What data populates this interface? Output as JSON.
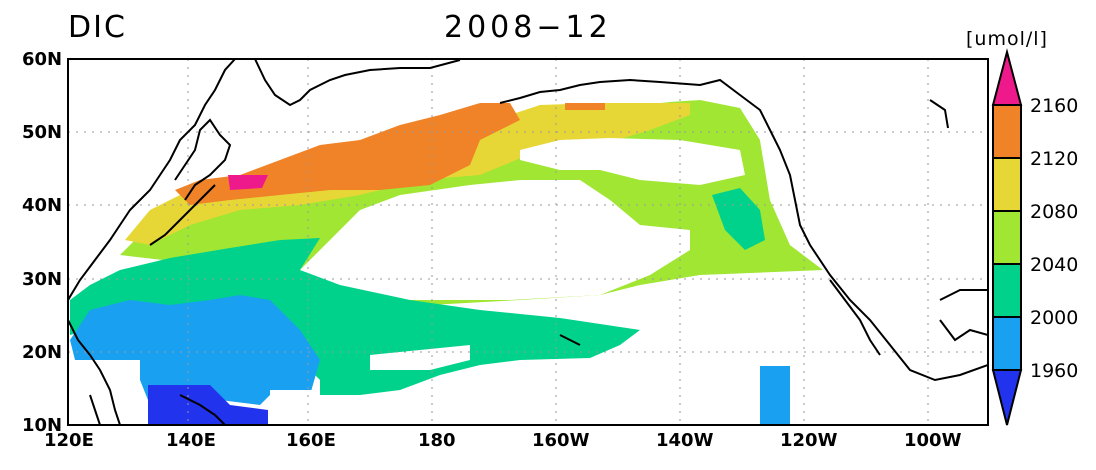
{
  "header": {
    "variable": "DIC",
    "date": "2008−12",
    "units": "[umol/l]"
  },
  "map": {
    "lon_range": [
      "120E",
      "90W"
    ],
    "lat_range": [
      "10N",
      "60N"
    ],
    "x_ticks": [
      "120E",
      "140E",
      "160E",
      "180",
      "160W",
      "140W",
      "120W",
      "100W"
    ],
    "y_ticks": [
      "60N",
      "50N",
      "40N",
      "30N",
      "20N",
      "10N"
    ],
    "grid": "dotted"
  },
  "colorbar": {
    "levels": [
      "2160",
      "2120",
      "2080",
      "2040",
      "2000",
      "1960"
    ],
    "colors": {
      "below_1960": "#2233ee",
      "1960_2000": "#1aa0f0",
      "2000_2040": "#00d28c",
      "2040_2080": "#a0e632",
      "2080_2120": "#e6d737",
      "2120_2160": "#f08228",
      "above_2160": "#ee1a8c"
    }
  }
}
